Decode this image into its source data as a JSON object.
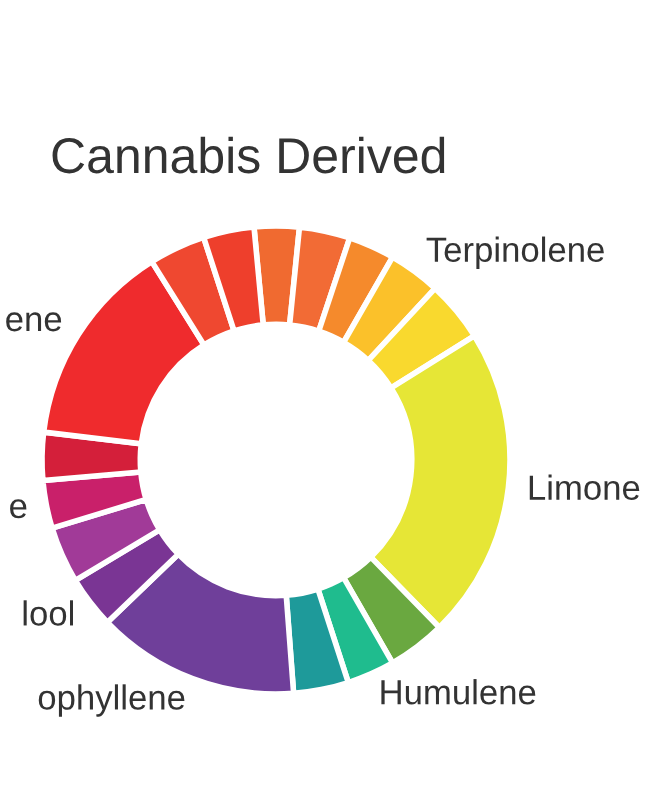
{
  "chart_data": {
    "type": "donut",
    "title": "Cannabis Derived",
    "categories": [
      null,
      null,
      null,
      "Terpinolene",
      null,
      "Limone",
      null,
      "Humulene",
      null,
      "ophyllene",
      "lool",
      null,
      "e",
      null,
      "ene",
      null,
      null
    ],
    "values": [
      3.1,
      3.5,
      3.2,
      3.6,
      4.2,
      21.6,
      4.0,
      3.3,
      3.8,
      14.0,
      3.6,
      3.9,
      3.3,
      3.3,
      14.2,
      3.9,
      3.5
    ],
    "colors": [
      "#f06a30",
      "#f26b35",
      "#f58a2c",
      "#fbc12a",
      "#f9d92e",
      "#e6e636",
      "#6aa840",
      "#1fbc8e",
      "#1e9a9a",
      "#6f3f9a",
      "#7a3594",
      "#a13a98",
      "#c9206a",
      "#d41f3a",
      "#ef2b2d",
      "#ef4830",
      "#ee3f2c"
    ]
  }
}
